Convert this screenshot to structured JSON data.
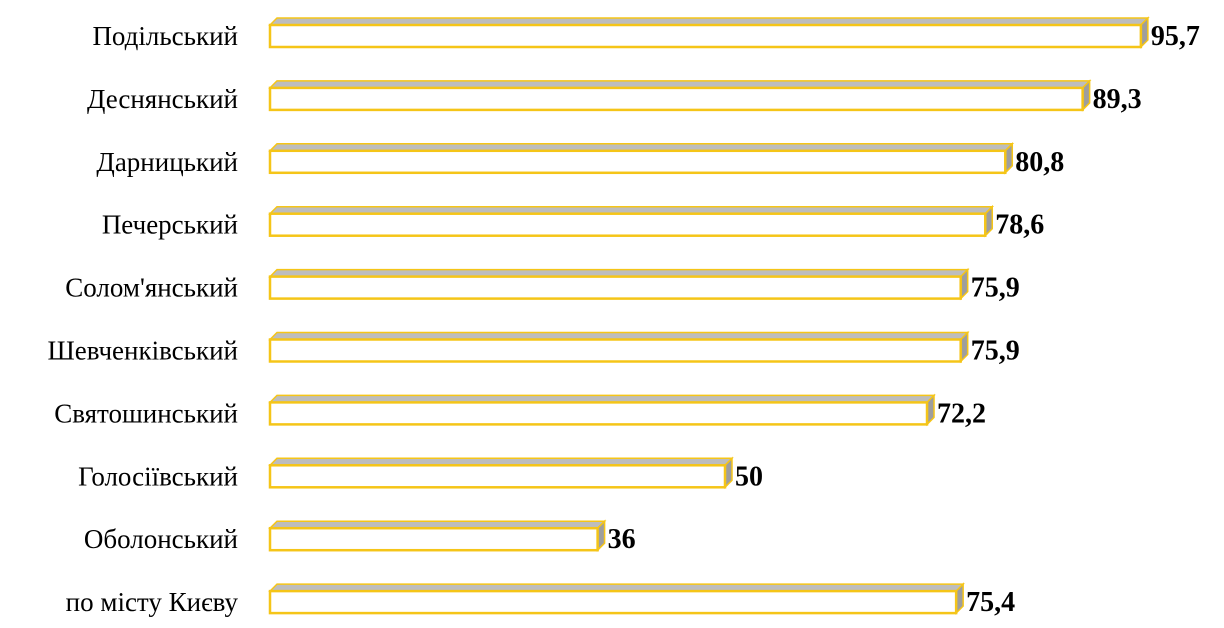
{
  "chart_data": {
    "type": "bar",
    "orientation": "horizontal",
    "style": "3d-outlined",
    "categories": [
      "Подільський",
      "Деснянський",
      "Дарницький",
      "Печерський",
      "Солом'янський",
      "Шевченківський",
      "Святошинський",
      "Голосіївський",
      "Оболонський",
      "по місту Києву"
    ],
    "values": [
      95.7,
      89.3,
      80.8,
      78.6,
      75.9,
      75.9,
      72.2,
      50,
      36,
      75.4
    ],
    "data_labels": [
      "95,7",
      "89,3",
      "80,8",
      "78,6",
      "75,9",
      "75,9",
      "72,2",
      "50",
      "36",
      "75,4"
    ],
    "title": "",
    "xlabel": "",
    "ylabel": "",
    "xlim": [
      0,
      100
    ],
    "grid": false,
    "legend": "none",
    "colors": {
      "bar_fill": "#ffffff",
      "bar_outline": "#f5c518",
      "bar_top": "#bdbdbd",
      "bar_side": "#9e9e9e"
    }
  }
}
